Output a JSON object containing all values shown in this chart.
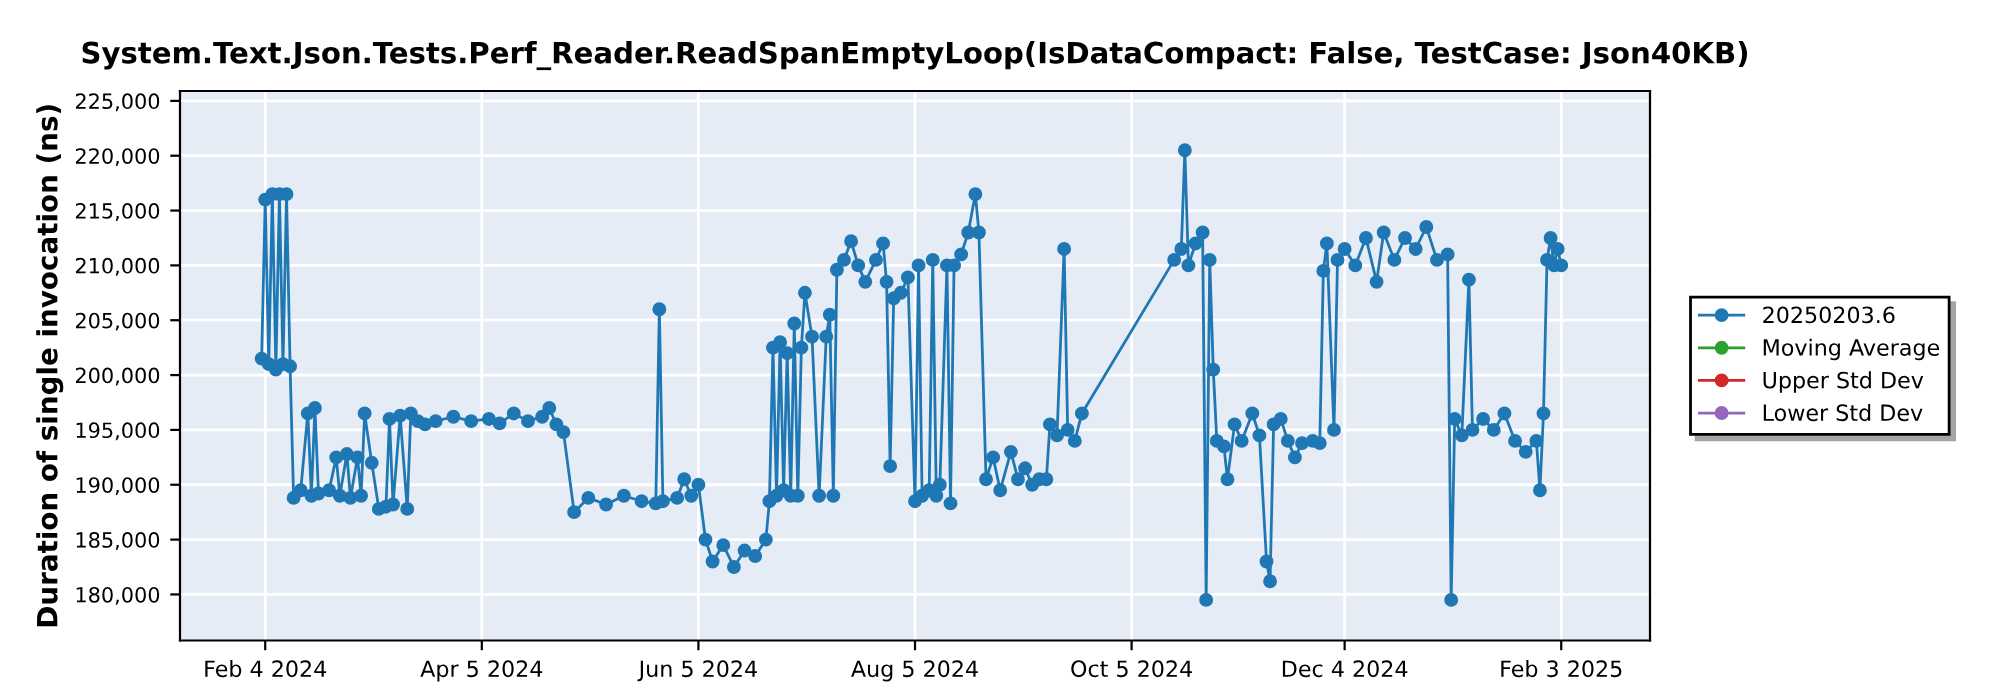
{
  "chart_data": {
    "type": "line",
    "title": "System.Text.Json.Tests.Perf_Reader.ReadSpanEmptyLoop(IsDataCompact: False, TestCase: Json40KB)",
    "ylabel": "Duration of single invocation (ns)",
    "x": [
      "2024-02-03",
      "2024-02-04",
      "2024-02-05",
      "2024-02-06",
      "2024-02-07",
      "2024-02-08",
      "2024-02-09",
      "2024-02-10",
      "2024-02-11",
      "2024-02-12",
      "2024-02-14",
      "2024-02-16",
      "2024-02-17",
      "2024-02-18",
      "2024-02-19",
      "2024-02-22",
      "2024-02-24",
      "2024-02-25",
      "2024-02-27",
      "2024-02-28",
      "2024-03-01",
      "2024-03-02",
      "2024-03-03",
      "2024-03-05",
      "2024-03-07",
      "2024-03-09",
      "2024-03-10",
      "2024-03-11",
      "2024-03-13",
      "2024-03-15",
      "2024-03-16",
      "2024-03-18",
      "2024-03-20",
      "2024-03-23",
      "2024-03-28",
      "2024-04-02",
      "2024-04-07",
      "2024-04-10",
      "2024-04-14",
      "2024-04-18",
      "2024-04-22",
      "2024-04-24",
      "2024-04-26",
      "2024-04-28",
      "2024-05-01",
      "2024-05-05",
      "2024-05-10",
      "2024-05-15",
      "2024-05-20",
      "2024-05-24",
      "2024-05-25",
      "2024-05-26",
      "2024-05-30",
      "2024-06-01",
      "2024-06-03",
      "2024-06-05",
      "2024-06-07",
      "2024-06-09",
      "2024-06-12",
      "2024-06-15",
      "2024-06-18",
      "2024-06-21",
      "2024-06-24",
      "2024-06-25",
      "2024-06-26",
      "2024-06-27",
      "2024-06-28",
      "2024-06-29",
      "2024-06-30",
      "2024-07-01",
      "2024-07-02",
      "2024-07-03",
      "2024-07-04",
      "2024-07-05",
      "2024-07-07",
      "2024-07-09",
      "2024-07-11",
      "2024-07-12",
      "2024-07-13",
      "2024-07-14",
      "2024-07-16",
      "2024-07-18",
      "2024-07-20",
      "2024-07-22",
      "2024-07-25",
      "2024-07-27",
      "2024-07-28",
      "2024-07-29",
      "2024-07-30",
      "2024-08-01",
      "2024-08-03",
      "2024-08-05",
      "2024-08-06",
      "2024-08-07",
      "2024-08-09",
      "2024-08-10",
      "2024-08-11",
      "2024-08-12",
      "2024-08-14",
      "2024-08-15",
      "2024-08-16",
      "2024-08-18",
      "2024-08-20",
      "2024-08-22",
      "2024-08-23",
      "2024-08-25",
      "2024-08-27",
      "2024-08-29",
      "2024-09-01",
      "2024-09-03",
      "2024-09-05",
      "2024-09-07",
      "2024-09-09",
      "2024-09-11",
      "2024-09-12",
      "2024-09-14",
      "2024-09-16",
      "2024-09-17",
      "2024-09-19",
      "2024-09-21",
      "2024-10-17",
      "2024-10-19",
      "2024-10-20",
      "2024-10-21",
      "2024-10-23",
      "2024-10-25",
      "2024-10-26",
      "2024-10-27",
      "2024-10-28",
      "2024-10-29",
      "2024-10-31",
      "2024-11-01",
      "2024-11-03",
      "2024-11-05",
      "2024-11-08",
      "2024-11-10",
      "2024-11-12",
      "2024-11-13",
      "2024-11-14",
      "2024-11-16",
      "2024-11-18",
      "2024-11-20",
      "2024-11-22",
      "2024-11-25",
      "2024-11-27",
      "2024-11-28",
      "2024-11-29",
      "2024-12-01",
      "2024-12-02",
      "2024-12-04",
      "2024-12-07",
      "2024-12-10",
      "2024-12-13",
      "2024-12-15",
      "2024-12-18",
      "2024-12-21",
      "2024-12-24",
      "2024-12-27",
      "2024-12-30",
      "2025-01-02",
      "2025-01-03",
      "2025-01-04",
      "2025-01-06",
      "2025-01-08",
      "2025-01-09",
      "2025-01-12",
      "2025-01-15",
      "2025-01-18",
      "2025-01-21",
      "2025-01-24",
      "2025-01-27",
      "2025-01-28",
      "2025-01-29",
      "2025-01-30",
      "2025-01-31",
      "2025-02-01",
      "2025-02-02",
      "2025-02-03"
    ],
    "series": [
      {
        "name": "20250203.6",
        "color": "#1f77b4",
        "values": [
          201500,
          216000,
          201000,
          216500,
          200500,
          216500,
          201000,
          216500,
          200800,
          188800,
          189500,
          196500,
          189000,
          197000,
          189200,
          189500,
          192500,
          189000,
          192800,
          188800,
          192500,
          189000,
          196500,
          192000,
          187800,
          188000,
          196000,
          188200,
          196300,
          187800,
          196500,
          195800,
          195500,
          195800,
          196200,
          195800,
          196000,
          195600,
          196500,
          195800,
          196200,
          197000,
          195500,
          194800,
          187500,
          188800,
          188200,
          189000,
          188500,
          188300,
          206000,
          188500,
          188800,
          190500,
          189000,
          190000,
          185000,
          183000,
          184500,
          182500,
          184000,
          183500,
          185000,
          188500,
          202500,
          189000,
          203000,
          189500,
          202000,
          189000,
          204700,
          189000,
          202500,
          207500,
          203500,
          189000,
          203500,
          205500,
          189000,
          209600,
          210500,
          212200,
          210000,
          208500,
          210500,
          212000,
          208500,
          191700,
          207000,
          207500,
          208900,
          188500,
          210000,
          189000,
          189500,
          210500,
          189000,
          190000,
          210000,
          188300,
          210000,
          211000,
          213000,
          216500,
          213000,
          190500,
          192500,
          189500,
          193000,
          190500,
          191500,
          190000,
          190500,
          190500,
          195500,
          194500,
          211500,
          195000,
          194000,
          196500,
          210500,
          211500,
          220500,
          210000,
          212000,
          213000,
          179500,
          210500,
          200500,
          194000,
          193500,
          190500,
          195500,
          194000,
          196500,
          194500,
          183000,
          181200,
          195500,
          196000,
          194000,
          192500,
          193800,
          194000,
          193800,
          209500,
          212000,
          195000,
          210500,
          211500,
          210000,
          212500,
          208500,
          213000,
          210500,
          212500,
          211500,
          213500,
          210500,
          211000,
          179500,
          196000,
          194500,
          208700,
          195000,
          196000,
          195000,
          196500,
          194000,
          193000,
          194000,
          189500,
          196500,
          210500,
          212500,
          210000,
          211500,
          210000
        ]
      },
      {
        "name": "Moving Average",
        "color": "#2ca02c",
        "values": [
          null,
          null,
          null,
          null,
          null,
          null,
          null,
          null,
          null,
          null,
          null,
          null,
          null,
          null,
          null,
          null,
          null,
          null,
          null,
          null,
          null,
          null,
          null,
          null,
          null,
          null,
          null,
          null,
          null,
          null,
          null,
          null,
          null,
          null,
          null,
          null,
          null,
          null,
          null,
          null,
          null,
          null,
          null,
          null,
          null,
          null,
          null,
          null,
          null,
          null,
          null,
          null,
          null,
          null,
          null,
          null,
          null,
          null,
          null,
          null,
          null,
          null,
          null,
          null,
          null,
          null,
          null,
          null,
          null,
          null,
          null,
          null,
          null,
          null,
          null,
          null,
          null,
          null,
          null,
          null,
          null,
          null,
          null,
          null,
          null,
          null,
          null,
          null,
          null,
          null,
          null,
          null,
          null,
          null,
          null,
          null,
          null,
          null,
          null,
          null,
          null,
          null,
          null,
          null,
          null,
          null,
          null,
          null,
          null,
          null,
          null,
          null,
          null,
          null,
          null,
          null,
          null,
          null,
          null,
          null,
          null,
          null,
          null,
          null,
          null,
          null,
          null,
          null,
          null,
          null,
          null,
          null,
          null,
          null,
          null,
          null,
          null,
          null,
          null,
          null,
          null,
          null,
          null,
          null,
          null,
          null,
          null,
          null,
          null,
          null,
          null,
          null,
          null,
          null,
          null,
          null,
          null,
          null,
          null,
          null,
          null,
          null,
          null,
          null,
          null,
          null,
          null,
          null,
          null,
          null,
          null,
          null,
          null,
          null,
          null,
          null,
          null,
          null
        ]
      },
      {
        "name": "Upper Std Dev",
        "color": "#d62728",
        "values": [
          null,
          null,
          null,
          null,
          null,
          null,
          null,
          null,
          null,
          null,
          null,
          null,
          null,
          null,
          null,
          null,
          null,
          null,
          null,
          null,
          null,
          null,
          null,
          null,
          null,
          null,
          null,
          null,
          null,
          null,
          null,
          null,
          null,
          null,
          null,
          null,
          null,
          null,
          null,
          null,
          null,
          null,
          null,
          null,
          null,
          null,
          null,
          null,
          null,
          null,
          null,
          null,
          null,
          null,
          null,
          null,
          null,
          null,
          null,
          null,
          null,
          null,
          null,
          null,
          null,
          null,
          null,
          null,
          null,
          null,
          null,
          null,
          null,
          null,
          null,
          null,
          null,
          null,
          null,
          null,
          null,
          null,
          null,
          null,
          null,
          null,
          null,
          null,
          null,
          null,
          null,
          null,
          null,
          null,
          null,
          null,
          null,
          null,
          null,
          null,
          null,
          null,
          null,
          null,
          null,
          null,
          null,
          null,
          null,
          null,
          null,
          null,
          null,
          null,
          null,
          null,
          null,
          null,
          null,
          null,
          null,
          null,
          null,
          null,
          null,
          null,
          null,
          null,
          null,
          null,
          null,
          null,
          null,
          null,
          null,
          null,
          null,
          null,
          null,
          null,
          null,
          null,
          null,
          null,
          null,
          null,
          null,
          null,
          null,
          null,
          null,
          null,
          null,
          null,
          null,
          null,
          null,
          null,
          null,
          null,
          null,
          null,
          null,
          null,
          null,
          null,
          null,
          null,
          null,
          null,
          null,
          null,
          null,
          null,
          null,
          null,
          null,
          null
        ]
      },
      {
        "name": "Lower Std Dev",
        "color": "#9467bd",
        "values": [
          null,
          null,
          null,
          null,
          null,
          null,
          null,
          null,
          null,
          null,
          null,
          null,
          null,
          null,
          null,
          null,
          null,
          null,
          null,
          null,
          null,
          null,
          null,
          null,
          null,
          null,
          null,
          null,
          null,
          null,
          null,
          null,
          null,
          null,
          null,
          null,
          null,
          null,
          null,
          null,
          null,
          null,
          null,
          null,
          null,
          null,
          null,
          null,
          null,
          null,
          null,
          null,
          null,
          null,
          null,
          null,
          null,
          null,
          null,
          null,
          null,
          null,
          null,
          null,
          null,
          null,
          null,
          null,
          null,
          null,
          null,
          null,
          null,
          null,
          null,
          null,
          null,
          null,
          null,
          null,
          null,
          null,
          null,
          null,
          null,
          null,
          null,
          null,
          null,
          null,
          null,
          null,
          null,
          null,
          null,
          null,
          null,
          null,
          null,
          null,
          null,
          null,
          null,
          null,
          null,
          null,
          null,
          null,
          null,
          null,
          null,
          null,
          null,
          null,
          null,
          null,
          null,
          null,
          null,
          null,
          null,
          null,
          null,
          null,
          null,
          null,
          null,
          null,
          null,
          null,
          null,
          null,
          null,
          null,
          null,
          null,
          null,
          null,
          null,
          null,
          null,
          null,
          null,
          null,
          null,
          null,
          null,
          null,
          null,
          null,
          null,
          null,
          null,
          null,
          null,
          null,
          null,
          null,
          null,
          null,
          null,
          null,
          null,
          null,
          null,
          null,
          null,
          null,
          null,
          null,
          null,
          null,
          null,
          null,
          null,
          null,
          null,
          null
        ]
      }
    ],
    "xlim": [
      "2024-01-11",
      "2025-02-28"
    ],
    "xticks": [
      {
        "value": "2024-02-04",
        "label": "Feb 4 2024"
      },
      {
        "value": "2024-04-05",
        "label": "Apr 5 2024"
      },
      {
        "value": "2024-06-05",
        "label": "Jun 5 2024"
      },
      {
        "value": "2024-08-05",
        "label": "Aug 5 2024"
      },
      {
        "value": "2024-10-05",
        "label": "Oct 5 2024"
      },
      {
        "value": "2024-12-04",
        "label": "Dec 4 2024"
      },
      {
        "value": "2025-02-03",
        "label": "Feb 3 2025"
      }
    ],
    "ylim": [
      175800,
      225900
    ],
    "yticks": [
      {
        "value": 180000,
        "label": "180,000"
      },
      {
        "value": 185000,
        "label": "185,000"
      },
      {
        "value": 190000,
        "label": "190,000"
      },
      {
        "value": 195000,
        "label": "195,000"
      },
      {
        "value": 200000,
        "label": "200,000"
      },
      {
        "value": 205000,
        "label": "205,000"
      },
      {
        "value": 210000,
        "label": "210,000"
      },
      {
        "value": 215000,
        "label": "215,000"
      },
      {
        "value": 220000,
        "label": "220,000"
      },
      {
        "value": 225000,
        "label": "225,000"
      }
    ],
    "grid": true,
    "legend": "right",
    "marker": "circle",
    "line_style": "solid"
  }
}
